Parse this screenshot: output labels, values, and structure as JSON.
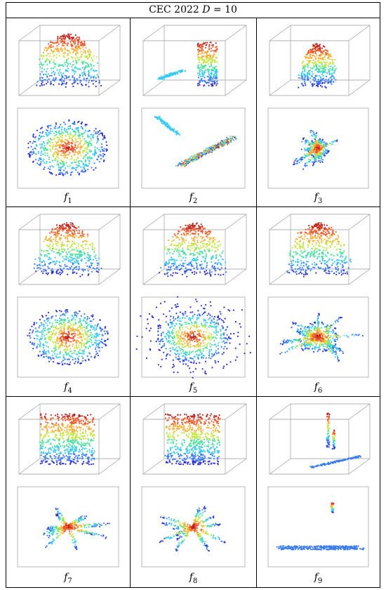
{
  "title": "CEC 2022 D = 10",
  "title_parts": {
    "prefix": "CEC 2022 ",
    "var": "D",
    "suffix": " = 10"
  },
  "colormap": [
    "#2b2fd6",
    "#3a7bf0",
    "#35c9f2",
    "#4de0a0",
    "#c8e64a",
    "#f6b03a",
    "#ee5a2a",
    "#c0221f"
  ],
  "panels": [
    {
      "fn": "f",
      "sub": "1",
      "shape": "dome",
      "top": "ring"
    },
    {
      "fn": "f",
      "sub": "2",
      "shape": "split",
      "top": "diagonal"
    },
    {
      "fn": "f",
      "sub": "3",
      "shape": "narrow",
      "top": "star-lines"
    },
    {
      "fn": "f",
      "sub": "4",
      "shape": "dome",
      "top": "ring"
    },
    {
      "fn": "f",
      "sub": "5",
      "shape": "dome",
      "top": "spiky"
    },
    {
      "fn": "f",
      "sub": "6",
      "shape": "dome",
      "top": "star"
    },
    {
      "fn": "f",
      "sub": "7",
      "shape": "block",
      "top": "fans"
    },
    {
      "fn": "f",
      "sub": "8",
      "shape": "block",
      "top": "fans"
    },
    {
      "fn": "f",
      "sub": "9",
      "shape": "spikes",
      "top": "band"
    }
  ]
}
